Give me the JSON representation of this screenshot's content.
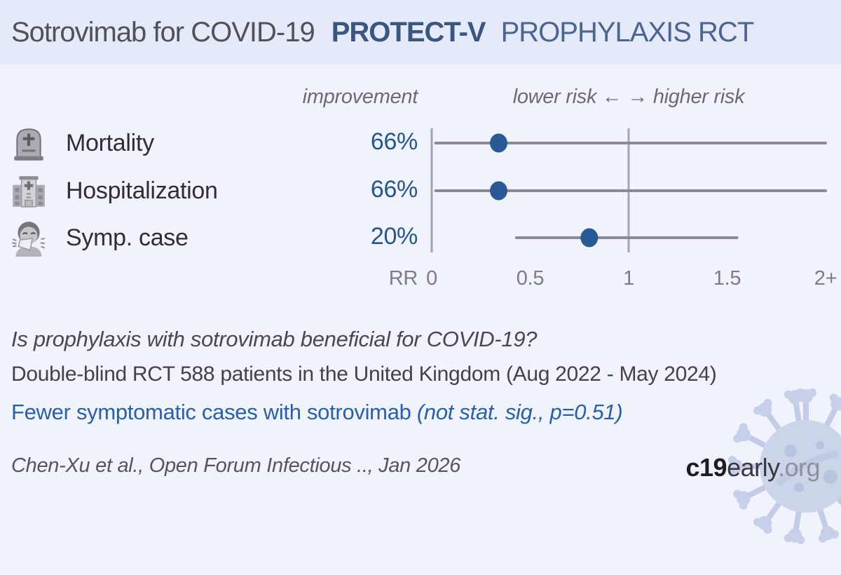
{
  "header": {
    "title": "Sotrovimab for COVID-19",
    "trial": "PROTECT-V",
    "subtitle": "PROPHYLAXIS RCT"
  },
  "columns": {
    "improvement": "improvement",
    "risk_scale": "lower risk ←  → higher risk"
  },
  "rows": [
    {
      "icon": "tombstone-icon",
      "label": "Mortality",
      "improvement": "66%"
    },
    {
      "icon": "hospital-icon",
      "label": "Hospitalization",
      "improvement": "66%"
    },
    {
      "icon": "sneezing-icon",
      "label": "Symp. case",
      "improvement": "20%"
    }
  ],
  "chart_data": {
    "type": "scatter",
    "subtype": "forest-plot",
    "rr_label": "RR",
    "xlim": [
      0,
      2.04
    ],
    "reference_line": 1,
    "ticks": [
      {
        "value": 0,
        "label": "0"
      },
      {
        "value": 0.5,
        "label": "0.5"
      },
      {
        "value": 1,
        "label": "1"
      },
      {
        "value": 1.5,
        "label": "1.5"
      },
      {
        "value": 2,
        "label": "2+"
      }
    ],
    "series": [
      {
        "name": "Mortality",
        "improvement_pct": 66,
        "rr": 0.34,
        "ci_low": 0.02,
        "ci_high": 2.0
      },
      {
        "name": "Hospitalization",
        "improvement_pct": 66,
        "rr": 0.34,
        "ci_low": 0.02,
        "ci_high": 2.0
      },
      {
        "name": "Symp. case",
        "improvement_pct": 20,
        "rr": 0.8,
        "ci_low": 0.43,
        "ci_high": 1.55
      }
    ],
    "legend": "off",
    "grid": "off"
  },
  "summary": {
    "question": "Is prophylaxis with sotrovimab beneficial for COVID-19?",
    "study": "Double-blind RCT 588 patients in the United Kingdom (Aug 2022 - May 2024)",
    "finding": "Fewer symptomatic cases with sotrovimab ",
    "finding_note": "(not stat. sig., p=0.51)",
    "citation": "Chen-Xu et al., Open Forum Infectious .., Jan 2026"
  },
  "branding": {
    "logo_bold": "c19",
    "logo_regular": "early",
    "logo_domain": ".org"
  },
  "colors": {
    "header_bg": "#e5eafb",
    "body_bg": "#f0f3fc",
    "axis_line": "#a0a6b4",
    "ci_line": "#8a8a92",
    "point": "#2a5a96",
    "value_blue": "#24568f",
    "finding_blue": "#2760ab",
    "virus_fill": "#ccd4ea",
    "virus_detail": "#b9c3e0"
  }
}
